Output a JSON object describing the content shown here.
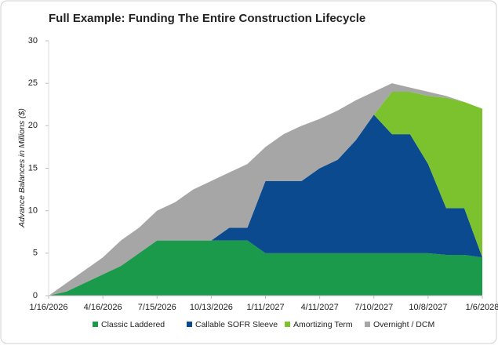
{
  "chart_data": {
    "type": "stacked_area",
    "title": "Full Example: Funding The Entire Construction Lifecycle",
    "y_label": "Advance Balances in Millions  ($)",
    "x": [
      "1/16/2026",
      "2/15/2026",
      "3/17/2026",
      "4/16/2026",
      "5/16/2026",
      "6/15/2026",
      "7/15/2026",
      "8/14/2026",
      "9/13/2026",
      "10/13/2026",
      "11/12/2026",
      "12/12/2026",
      "1/11/2027",
      "2/10/2027",
      "3/12/2027",
      "4/11/2027",
      "5/11/2027",
      "6/10/2027",
      "7/10/2027",
      "8/9/2027",
      "9/8/2027",
      "10/8/2027",
      "11/7/2027",
      "12/7/2027",
      "1/6/2028"
    ],
    "series": [
      {
        "name": "Classic Laddered",
        "color": "#1a9a4a",
        "values": [
          0,
          0.5,
          1.5,
          2.5,
          3.5,
          5,
          6.5,
          6.5,
          6.5,
          6.5,
          6.5,
          6.5,
          5,
          5,
          5,
          5,
          5,
          5,
          5,
          5,
          5,
          5,
          4.8,
          4.8,
          4.5
        ]
      },
      {
        "name": "Callable SOFR Sleeve",
        "color": "#0b4a8f",
        "values": [
          0,
          0,
          0,
          0,
          0,
          0,
          0,
          0,
          0,
          0,
          1.5,
          1.5,
          8.5,
          8.5,
          8.5,
          10,
          11,
          13.3,
          16.3,
          14,
          14,
          10.5,
          5.5,
          5.5,
          0
        ]
      },
      {
        "name": "Amortizing Term",
        "color": "#7cc22e",
        "values": [
          0,
          0,
          0,
          0,
          0,
          0,
          0,
          0,
          0,
          0,
          0,
          0,
          0,
          0,
          0,
          0,
          0,
          0,
          0,
          5,
          5,
          8,
          13,
          12.5,
          17.5
        ]
      },
      {
        "name": "Overnight / DCM",
        "color": "#a6a6a6",
        "values": [
          0,
          1,
          1.5,
          2,
          3,
          3,
          3.5,
          4.5,
          6,
          7,
          6.5,
          7.5,
          4,
          5.5,
          6.5,
          5.8,
          5.8,
          4.7,
          2.7,
          1,
          0.5,
          0.5,
          0.2,
          0,
          0
        ]
      }
    ],
    "xlim": [
      "1/16/2026",
      "1/6/2028"
    ],
    "xticks": [
      "1/16/2026",
      "4/16/2026",
      "7/15/2026",
      "10/13/2026",
      "1/11/2027",
      "4/11/2027",
      "7/10/2027",
      "10/8/2027",
      "1/6/2028"
    ],
    "ylim": [
      0,
      30
    ],
    "yticks": [
      0,
      5,
      10,
      15,
      20,
      25,
      30
    ]
  }
}
